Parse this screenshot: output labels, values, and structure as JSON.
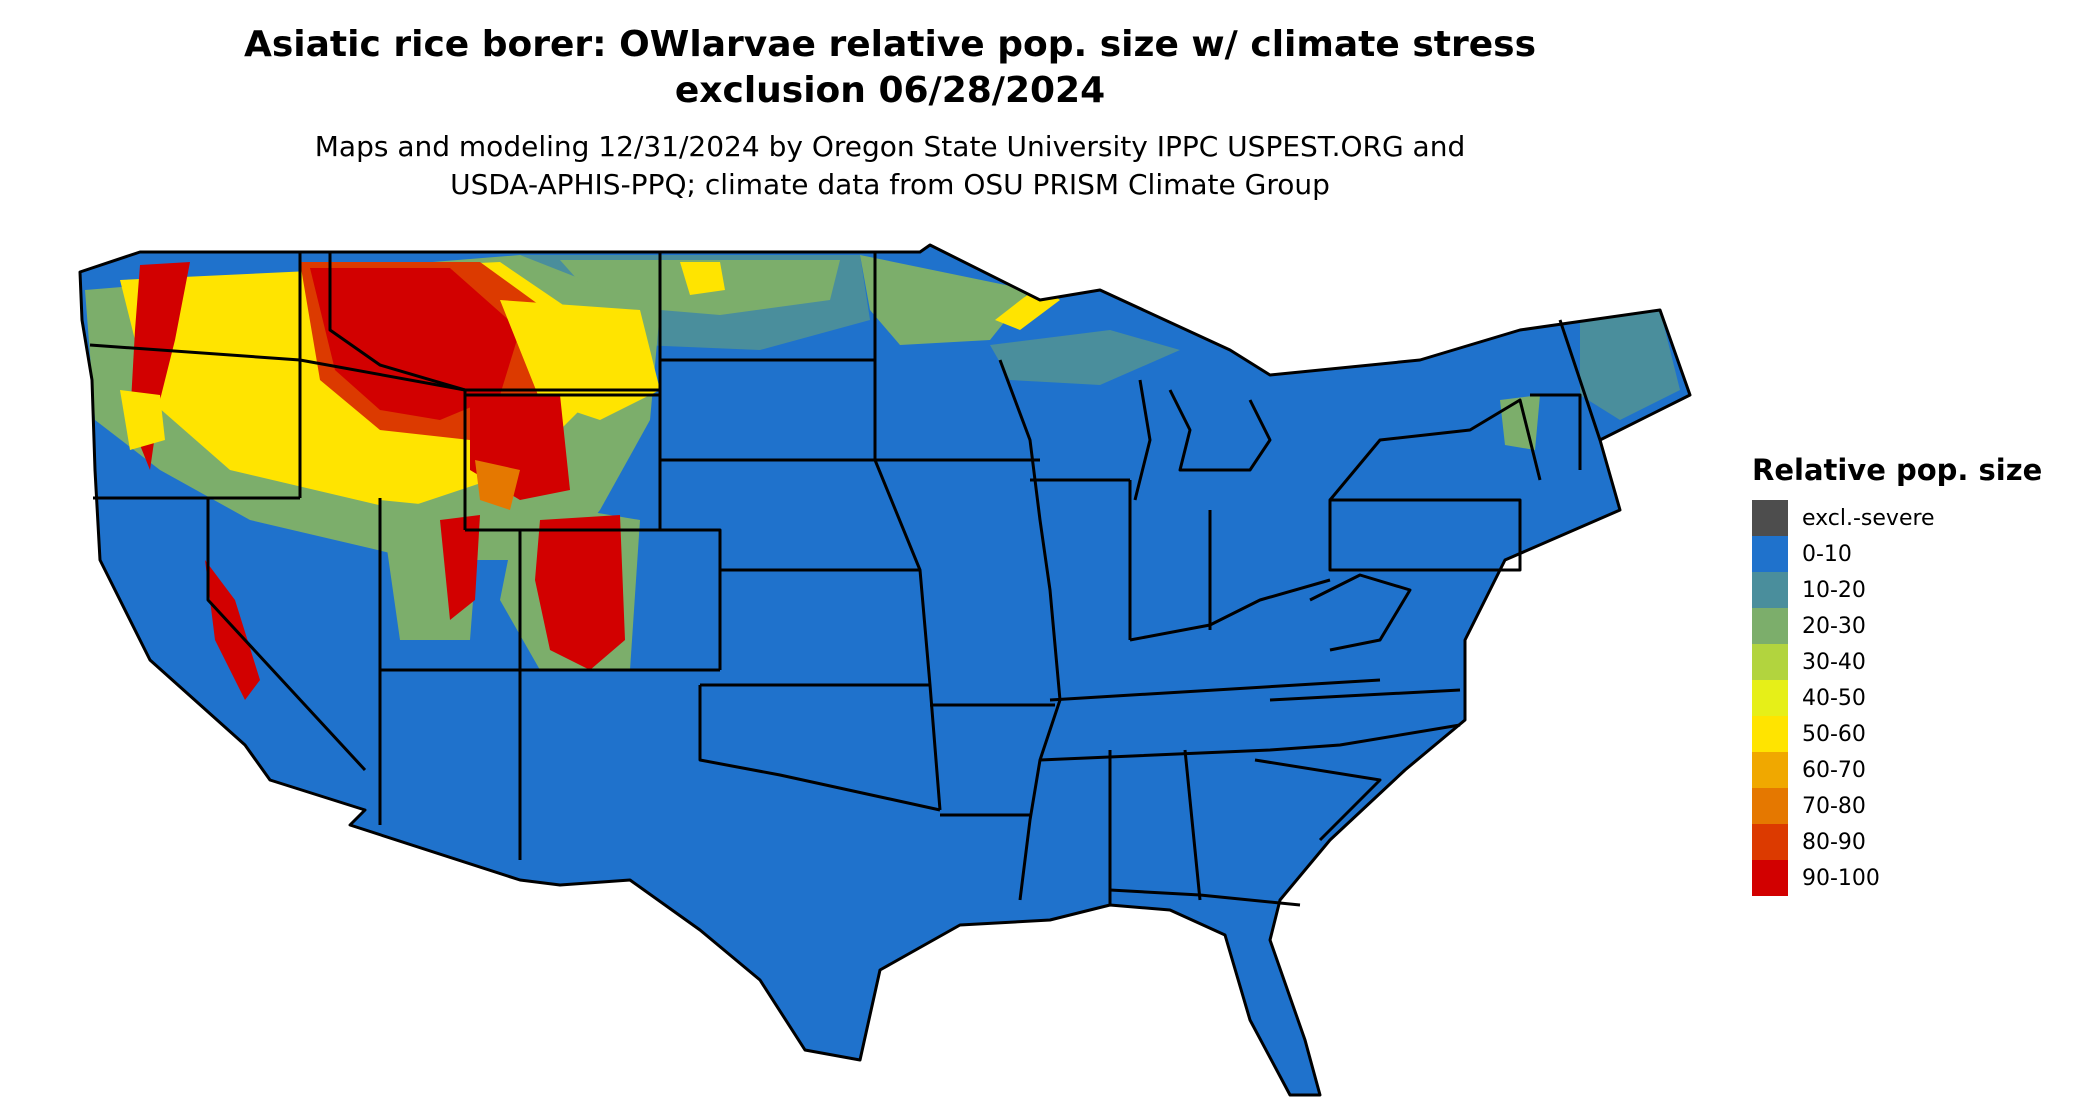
{
  "title_line1": "Asiatic rice borer: OWlarvae relative pop. size w/ climate stress",
  "title_line2": "exclusion 06/28/2024",
  "subtitle_line1": "Maps and modeling 12/31/2024 by Oregon State University IPPC USPEST.ORG and",
  "subtitle_line2": "USDA-APHIS-PPQ; climate data from OSU PRISM Climate Group",
  "legend": {
    "title": "Relative pop. size",
    "items": [
      {
        "label": "excl.-severe",
        "color": "#4d4d4d"
      },
      {
        "label": "0-10",
        "color": "#1f72cc"
      },
      {
        "label": "10-20",
        "color": "#4a8e9c"
      },
      {
        "label": "20-30",
        "color": "#7cae6b"
      },
      {
        "label": "30-40",
        "color": "#b2d43e"
      },
      {
        "label": "40-50",
        "color": "#e6ef18"
      },
      {
        "label": "50-60",
        "color": "#ffe400"
      },
      {
        "label": "60-70",
        "color": "#f0a800"
      },
      {
        "label": "70-80",
        "color": "#e57800"
      },
      {
        "label": "80-90",
        "color": "#dc3a00"
      },
      {
        "label": "90-100",
        "color": "#d20000"
      }
    ]
  }
}
